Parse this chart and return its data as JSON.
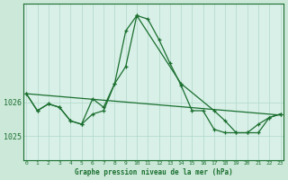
{
  "title": "Graphe pression niveau de la mer (hPa)",
  "bg_color": "#cbe8d8",
  "plot_bg_color": "#d8f0e8",
  "line_color": "#1a6e2e",
  "grid_color": "#b0d8c8",
  "x_labels": [
    "0",
    "1",
    "2",
    "3",
    "4",
    "5",
    "6",
    "7",
    "8",
    "9",
    "10",
    "11",
    "12",
    "13",
    "14",
    "15",
    "16",
    "17",
    "18",
    "19",
    "20",
    "21",
    "22",
    "23"
  ],
  "y_ticks": [
    1025,
    1026
  ],
  "ylim": [
    1024.3,
    1028.9
  ],
  "xlim": [
    -0.3,
    23.3
  ],
  "series1_x": [
    0,
    1,
    2,
    3,
    4,
    5,
    6,
    7,
    8,
    9,
    10,
    11,
    12,
    13,
    14,
    15,
    16,
    17,
    18,
    19,
    20,
    21,
    22,
    23
  ],
  "series1_y": [
    1026.25,
    1025.75,
    1025.95,
    1025.85,
    1025.45,
    1025.35,
    1025.65,
    1025.75,
    1026.55,
    1028.1,
    1028.55,
    1028.45,
    1027.85,
    1027.15,
    1026.5,
    1025.75,
    1025.75,
    1025.2,
    1025.1,
    1025.1,
    1025.1,
    1025.35,
    1025.55,
    1025.65
  ],
  "series2_x": [
    0,
    1,
    2,
    3,
    4,
    5,
    6,
    7,
    8,
    9,
    10,
    14,
    17,
    18,
    19,
    20,
    21,
    22,
    23
  ],
  "series2_y": [
    1026.25,
    1025.75,
    1025.95,
    1025.85,
    1025.45,
    1025.35,
    1026.1,
    1025.85,
    1026.55,
    1027.05,
    1028.55,
    1026.55,
    1025.75,
    1025.45,
    1025.1,
    1025.1,
    1025.1,
    1025.55,
    1025.65
  ],
  "trend_x": [
    0,
    23
  ],
  "trend_y": [
    1026.25,
    1025.62
  ]
}
